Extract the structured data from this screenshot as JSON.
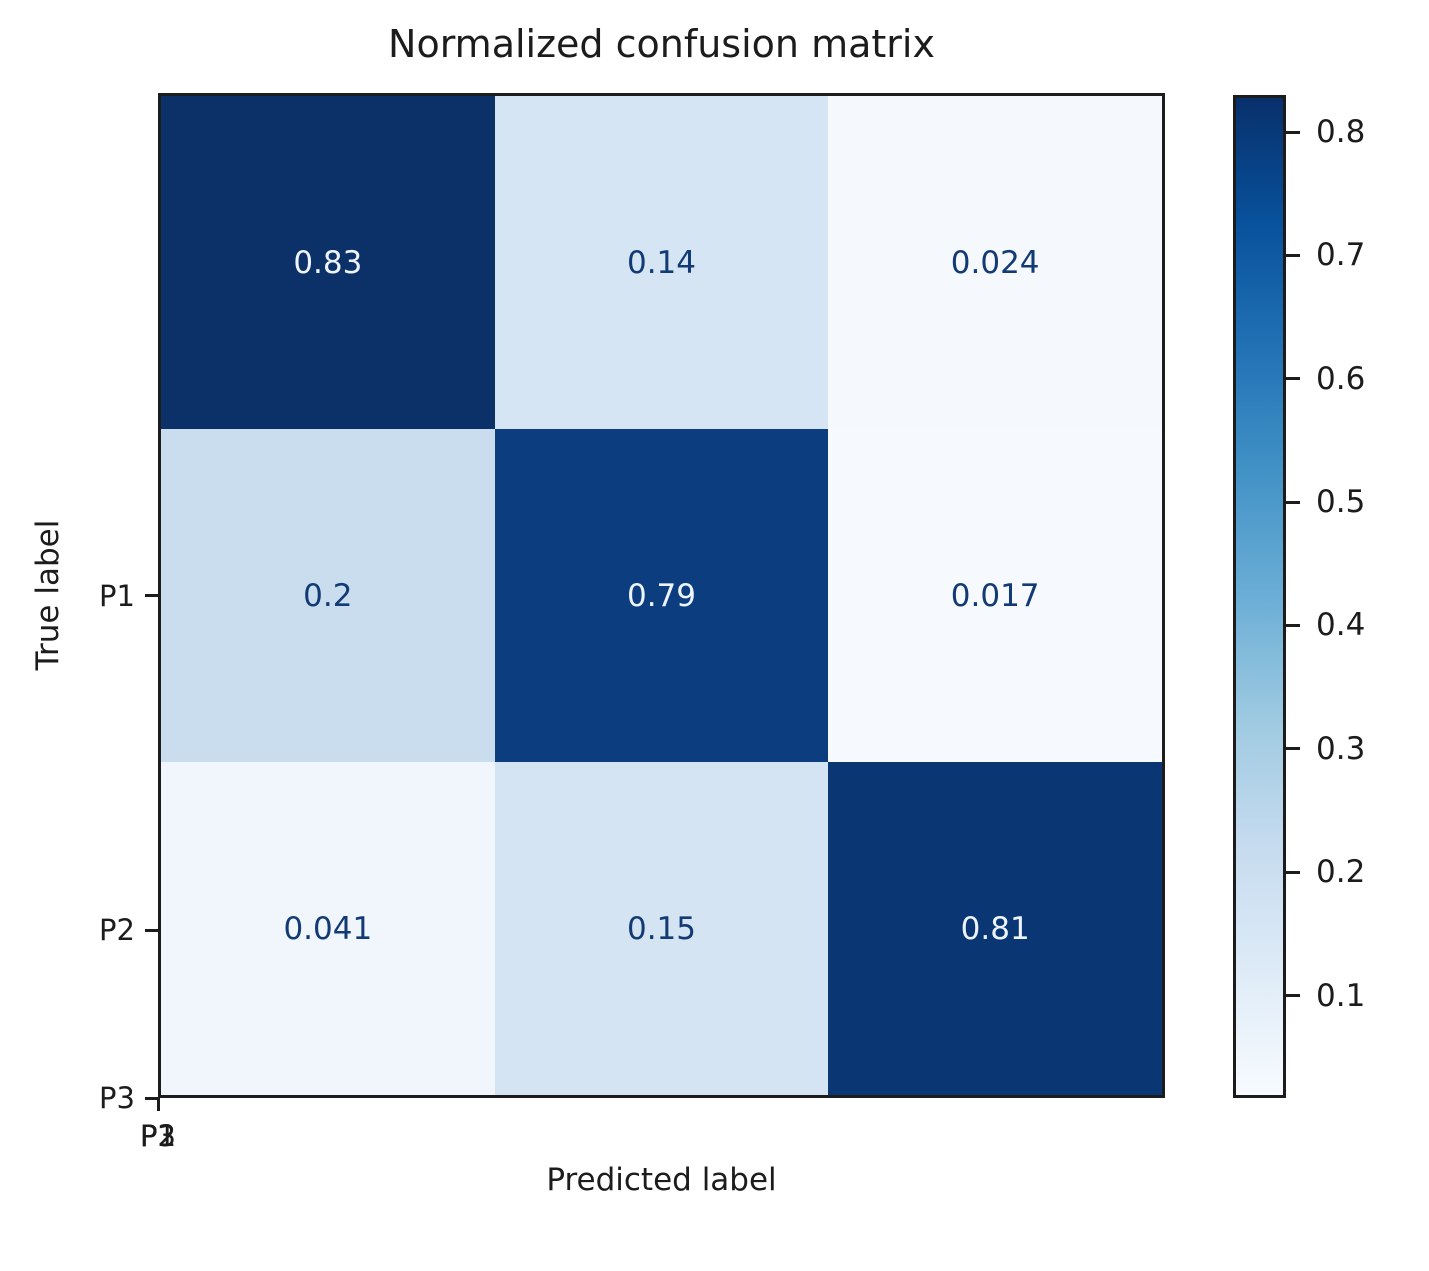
{
  "chart_data": {
    "type": "heatmap",
    "title": "Normalized confusion matrix",
    "xlabel": "Predicted label",
    "ylabel": "True label",
    "x_categories": [
      "P1",
      "P2",
      "P3"
    ],
    "y_categories": [
      "P1",
      "P2",
      "P3"
    ],
    "values": [
      [
        0.83,
        0.14,
        0.024
      ],
      [
        0.2,
        0.79,
        0.017
      ],
      [
        0.041,
        0.15,
        0.81
      ]
    ],
    "colormap": "Blues",
    "vmin": 0.017,
    "vmax": 0.83,
    "colorbar_ticks": [
      0.8,
      0.7,
      0.6,
      0.5,
      0.4,
      0.3,
      0.2,
      0.1
    ],
    "legend_position": "right-colorbar",
    "grid": false
  },
  "title": "Normalized confusion matrix",
  "axes": {
    "xlabel": "Predicted label",
    "ylabel": "True label",
    "xticks": [
      "P1",
      "P2",
      "P3"
    ],
    "yticks": [
      "P1",
      "P2",
      "P3"
    ]
  },
  "matrix": {
    "cells": [
      {
        "label": "0.83",
        "bg": "#0b3168",
        "fg": "#eef4fc"
      },
      {
        "label": "0.14",
        "bg": "#d6e5f4",
        "fg": "#123a74"
      },
      {
        "label": "0.024",
        "bg": "#f5f9fe",
        "fg": "#123a74"
      },
      {
        "label": "0.2",
        "bg": "#c9ddef",
        "fg": "#123a74"
      },
      {
        "label": "0.79",
        "bg": "#0c3d7e",
        "fg": "#eef4fc"
      },
      {
        "label": "0.017",
        "bg": "#f6fafe",
        "fg": "#123a74"
      },
      {
        "label": "0.041",
        "bg": "#f0f6fc",
        "fg": "#123a74"
      },
      {
        "label": "0.15",
        "bg": "#d5e4f3",
        "fg": "#123a74"
      },
      {
        "label": "0.81",
        "bg": "#0a3673",
        "fg": "#eef4fc"
      }
    ]
  },
  "colorbar": {
    "ticks": [
      {
        "value": 0.8,
        "label": "0.8"
      },
      {
        "value": 0.7,
        "label": "0.7"
      },
      {
        "value": 0.6,
        "label": "0.6"
      },
      {
        "value": 0.5,
        "label": "0.5"
      },
      {
        "value": 0.4,
        "label": "0.4"
      },
      {
        "value": 0.3,
        "label": "0.3"
      },
      {
        "value": 0.2,
        "label": "0.2"
      },
      {
        "value": 0.1,
        "label": "0.1"
      }
    ],
    "gradient_stops_top_to_bottom": [
      "#08306b",
      "#08519c",
      "#2171b5",
      "#4292c6",
      "#6baed6",
      "#9ecae1",
      "#c6dbef",
      "#deebf7",
      "#f7fbff"
    ]
  },
  "colors": {
    "spine": "#1c1c1c",
    "dark_cell_text": "#eef4fc",
    "light_cell_text": "#123a74"
  }
}
